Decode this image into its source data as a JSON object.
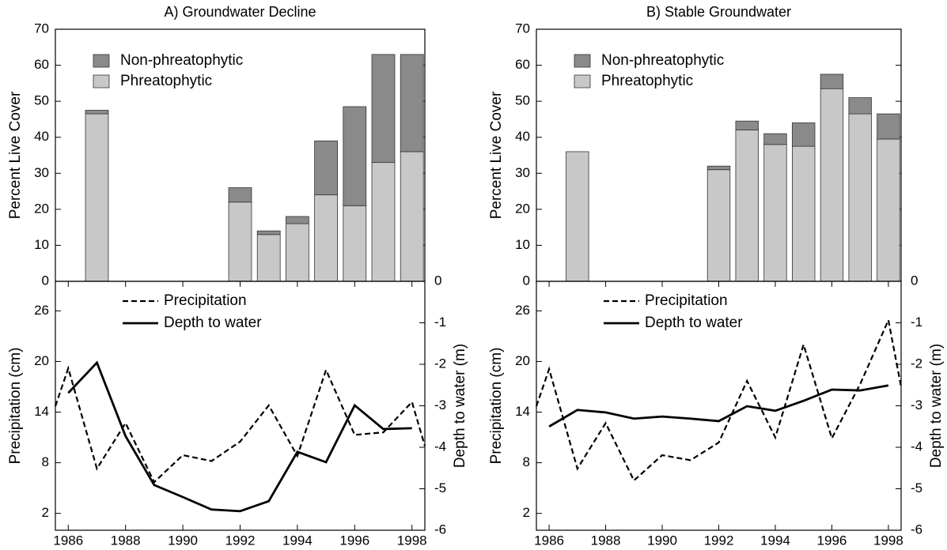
{
  "chart_data": [
    {
      "type": "bar",
      "title": "A) Groundwater Decline",
      "ylabel": "Percent Live Cover",
      "stacked": true,
      "legend": "upper left",
      "x": [
        1987,
        1992,
        1993,
        1994,
        1995,
        1996,
        1997,
        1998
      ],
      "xlim": [
        1985.55,
        1998.45
      ],
      "ylim": [
        0,
        70
      ],
      "yticks": [
        0,
        10,
        20,
        30,
        40,
        50,
        60,
        70
      ],
      "series": [
        {
          "name": "Phreatophytic",
          "color": "#c8c8c8",
          "values": [
            46.5,
            22,
            13,
            16,
            24,
            21,
            33,
            36
          ]
        },
        {
          "name": "Non-phreatophytic",
          "color": "#8a8a8a",
          "values": [
            1,
            4,
            1,
            2,
            15,
            27.5,
            30,
            27
          ]
        }
      ]
    },
    {
      "type": "line",
      "ylabel": "Precipitation (cm)",
      "y2label": "Depth to water (m)",
      "legend": "upper left",
      "xlim": [
        1985.55,
        1998.45
      ],
      "xticks": [
        1986,
        1988,
        1990,
        1992,
        1994,
        1996,
        1998
      ],
      "ylim": [
        0,
        29.5
      ],
      "yticks": [
        2,
        8,
        14,
        20,
        26
      ],
      "y2lim": [
        -6,
        0
      ],
      "y2ticks": [
        0,
        -1,
        -2,
        -3,
        -4,
        -5,
        -6
      ],
      "series": [
        {
          "name": "Precipitation",
          "color": "#000000",
          "dash": true,
          "x": [
            1985.55,
            1986,
            1987,
            1988,
            1989,
            1990,
            1991,
            1992,
            1993,
            1994,
            1995,
            1996,
            1997,
            1998,
            1998.45
          ],
          "values": [
            14.7,
            19.2,
            7.3,
            12.7,
            5.7,
            8.9,
            8.2,
            10.5,
            14.8,
            8.8,
            19.0,
            11.3,
            11.6,
            15.2,
            10.0
          ]
        },
        {
          "name": "Depth to water",
          "color": "#000000",
          "axis": "y2",
          "x": [
            1986,
            1987,
            1988,
            1989,
            1990,
            1991,
            1992,
            1993,
            1994,
            1995,
            1996,
            1997,
            1998
          ],
          "values": [
            -2.69,
            -1.96,
            -3.73,
            -4.91,
            -5.2,
            -5.5,
            -5.54,
            -5.3,
            -4.11,
            -4.36,
            -2.99,
            -3.56,
            -3.54
          ]
        }
      ]
    },
    {
      "type": "bar",
      "title": "B) Stable Groundwater",
      "ylabel": "Percent Live Cover",
      "stacked": true,
      "legend": "upper left",
      "x": [
        1987,
        1992,
        1993,
        1994,
        1995,
        1996,
        1997,
        1998
      ],
      "xlim": [
        1985.55,
        1998.45
      ],
      "ylim": [
        0,
        70
      ],
      "yticks": [
        0,
        10,
        20,
        30,
        40,
        50,
        60,
        70
      ],
      "series": [
        {
          "name": "Phreatophytic",
          "color": "#c8c8c8",
          "values": [
            36,
            31,
            42,
            38,
            37.5,
            53.5,
            46.5,
            39.5
          ]
        },
        {
          "name": "Non-phreatophytic",
          "color": "#8a8a8a",
          "values": [
            0,
            1,
            2.5,
            3,
            6.5,
            4,
            4.5,
            7
          ]
        }
      ]
    },
    {
      "type": "line",
      "ylabel": "Precipitation (cm)",
      "y2label": "Depth to water (m)",
      "legend": "upper left",
      "xlim": [
        1985.55,
        1998.45
      ],
      "xticks": [
        1986,
        1988,
        1990,
        1992,
        1994,
        1996,
        1998
      ],
      "ylim": [
        0,
        29.5
      ],
      "yticks": [
        2,
        8,
        14,
        20,
        26
      ],
      "y2lim": [
        -6,
        0
      ],
      "y2ticks": [
        0,
        -1,
        -2,
        -3,
        -4,
        -5,
        -6
      ],
      "series": [
        {
          "name": "Precipitation",
          "color": "#000000",
          "dash": true,
          "x": [
            1985.55,
            1986,
            1987,
            1988,
            1989,
            1990,
            1991,
            1992,
            1993,
            1994,
            1995,
            1996,
            1997,
            1998,
            1998.45
          ],
          "values": [
            14.7,
            19.1,
            7.3,
            12.7,
            5.9,
            8.9,
            8.3,
            10.4,
            17.7,
            11.0,
            22.0,
            10.9,
            17.3,
            24.9,
            17.0
          ]
        },
        {
          "name": "Depth to water",
          "color": "#000000",
          "axis": "y2",
          "x": [
            1986,
            1987,
            1988,
            1989,
            1990,
            1991,
            1992,
            1993,
            1994,
            1995,
            1996,
            1997,
            1998
          ],
          "values": [
            -3.5,
            -3.1,
            -3.16,
            -3.31,
            -3.26,
            -3.31,
            -3.37,
            -3.01,
            -3.12,
            -2.88,
            -2.61,
            -2.63,
            -2.51
          ]
        }
      ]
    }
  ]
}
